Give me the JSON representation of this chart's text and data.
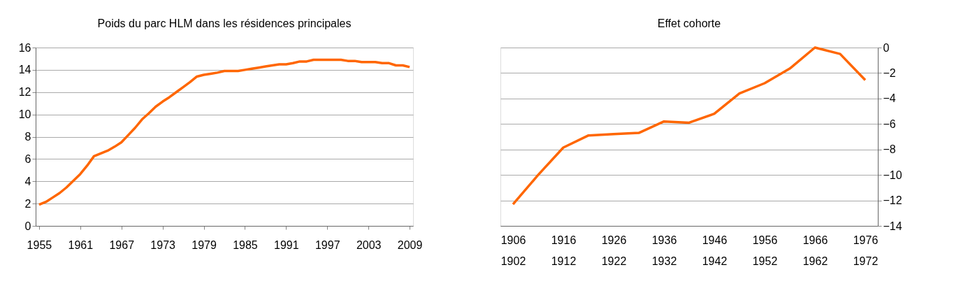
{
  "chart_data": [
    {
      "type": "line",
      "title": "Poids du parc HLM dans les résidences principales",
      "x": [
        1955,
        1956,
        1957,
        1958,
        1959,
        1960,
        1961,
        1962,
        1963,
        1964,
        1965,
        1966,
        1967,
        1968,
        1969,
        1970,
        1971,
        1972,
        1973,
        1974,
        1975,
        1976,
        1977,
        1978,
        1979,
        1980,
        1981,
        1982,
        1983,
        1984,
        1985,
        1986,
        1987,
        1988,
        1989,
        1990,
        1991,
        1992,
        1993,
        1994,
        1995,
        1996,
        1997,
        1998,
        1999,
        2000,
        2001,
        2002,
        2003,
        2004,
        2005,
        2006,
        2007,
        2008,
        2009
      ],
      "series": [
        {
          "color": "#ff6600",
          "values": [
            1.9,
            2.15,
            2.55,
            2.95,
            3.45,
            4.05,
            4.65,
            5.4,
            6.25,
            6.5,
            6.75,
            7.1,
            7.5,
            8.15,
            8.8,
            9.55,
            10.1,
            10.7,
            11.15,
            11.55,
            12.0,
            12.45,
            12.9,
            13.4,
            13.55,
            13.65,
            13.75,
            13.9,
            13.9,
            13.9,
            14.0,
            14.1,
            14.2,
            14.3,
            14.4,
            14.5,
            14.5,
            14.6,
            14.75,
            14.75,
            14.9,
            14.9,
            14.9,
            14.9,
            14.9,
            14.8,
            14.8,
            14.7,
            14.7,
            14.7,
            14.6,
            14.6,
            14.4,
            14.4,
            14.25
          ]
        }
      ],
      "xlim": [
        1954.5,
        2009.5
      ],
      "xticks": [
        1955,
        1961,
        1967,
        1973,
        1979,
        1985,
        1991,
        1997,
        2003,
        2009
      ],
      "ylim": [
        0,
        16
      ],
      "yticks": [
        0,
        2,
        4,
        6,
        8,
        10,
        12,
        14,
        16
      ],
      "grid": "y",
      "legend": false,
      "marker": "none",
      "line_style": "solid"
    },
    {
      "type": "line",
      "title": "Effet cohorte",
      "categories": [
        "1906\n1902",
        null,
        "1916\n1912",
        null,
        "1926\n1922",
        null,
        "1936\n1932",
        null,
        "1946\n1942",
        null,
        "1956\n1952",
        null,
        "1966\n1962",
        null,
        "1976\n1972"
      ],
      "series": [
        {
          "color": "#ff6600",
          "values": [
            -12.3,
            -10.0,
            -7.85,
            -6.9,
            -6.8,
            -6.7,
            -5.8,
            -5.9,
            -5.2,
            -3.6,
            -2.8,
            -1.65,
            0,
            -0.5,
            -2.55
          ]
        }
      ],
      "ylim": [
        -14,
        0
      ],
      "yticks": [
        0,
        -2,
        -4,
        -6,
        -8,
        -10,
        -12,
        -14
      ],
      "grid": "y",
      "legend": false,
      "marker": "none",
      "line_style": "solid"
    }
  ]
}
